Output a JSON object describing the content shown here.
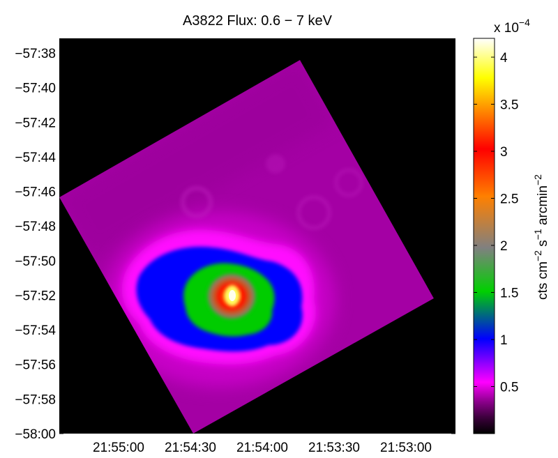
{
  "chart_data": {
    "type": "heatmap",
    "title": "A3822 Flux: 0.6 − 7 keV",
    "colorbar": {
      "multiplier_base": "x 10",
      "multiplier_exp": "−4",
      "label_parts": {
        "p1": "cts cm",
        "e1": "−2",
        "p2": " s",
        "e2": "−1",
        "p3": " arcmin",
        "e3": "−2"
      },
      "range": [
        0.0,
        4.2
      ],
      "ticks": [
        0.5,
        1,
        1.5,
        2,
        2.5,
        3,
        3.5,
        4
      ],
      "tick_labels": [
        "0.5",
        "1",
        "1.5",
        "2",
        "2.5",
        "3",
        "3.5",
        "4"
      ],
      "colormap": [
        "#000000",
        "#3a003a",
        "#8a008a",
        "#ff00ff",
        "#0000ff",
        "#00d000",
        "#808080",
        "#ff8000",
        "#ff0000",
        "#ffff00",
        "#ffffff"
      ]
    },
    "x_axis": {
      "quantity": "right ascension",
      "ticks": [
        "21:55:00",
        "21:54:30",
        "21:54:00",
        "21:53:30",
        "21:53:00"
      ]
    },
    "y_axis": {
      "quantity": "declination",
      "ticks": [
        "−57:38",
        "−57:40",
        "−57:42",
        "−57:44",
        "−57:46",
        "−57:48",
        "−57:50",
        "−57:52",
        "−57:54",
        "−57:56",
        "−57:58",
        "−58:00"
      ]
    },
    "peak_flux_e4": 4.2,
    "background_color": "#000000"
  }
}
